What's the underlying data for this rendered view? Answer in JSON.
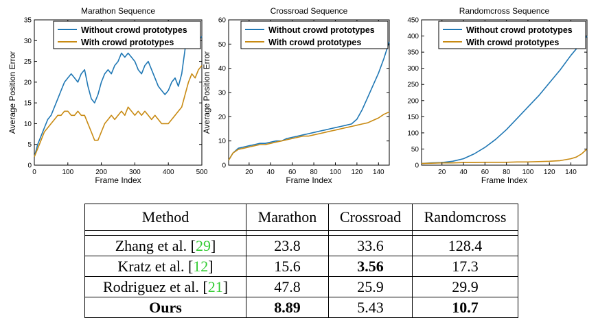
{
  "chart_data": [
    {
      "type": "line",
      "title": "Marathon Sequence",
      "xlabel": "Frame Index",
      "ylabel": "Average Position Error",
      "xlim": [
        0,
        500
      ],
      "ylim": [
        0,
        35
      ],
      "xticks": [
        0,
        100,
        200,
        300,
        400,
        500
      ],
      "yticks": [
        0,
        5,
        10,
        15,
        20,
        25,
        30,
        35
      ],
      "legend": "top-right",
      "grid": false,
      "series": [
        {
          "name": "Without crowd prototypes",
          "color": "#1f77b4",
          "x": [
            0,
            10,
            20,
            30,
            40,
            50,
            60,
            70,
            80,
            90,
            100,
            110,
            120,
            130,
            140,
            150,
            160,
            170,
            180,
            190,
            200,
            210,
            220,
            230,
            240,
            250,
            260,
            270,
            280,
            290,
            300,
            310,
            320,
            330,
            340,
            350,
            360,
            370,
            380,
            390,
            400,
            410,
            420,
            430,
            440,
            450,
            460,
            470,
            480,
            490,
            500
          ],
          "y": [
            2,
            5,
            7,
            9,
            11,
            12,
            14,
            16,
            18,
            20,
            21,
            22,
            21,
            20,
            22,
            23,
            19,
            16,
            15,
            17,
            20,
            22,
            23,
            22,
            24,
            25,
            27,
            26,
            27,
            26,
            25,
            23,
            22,
            24,
            25,
            23,
            21,
            19,
            18,
            17,
            18,
            20,
            21,
            19,
            22,
            28,
            31,
            34,
            29,
            30,
            31
          ]
        },
        {
          "name": "With crowd prototypes",
          "color": "#c88a12",
          "x": [
            0,
            10,
            20,
            30,
            40,
            50,
            60,
            70,
            80,
            90,
            100,
            110,
            120,
            130,
            140,
            150,
            160,
            170,
            180,
            190,
            200,
            210,
            220,
            230,
            240,
            250,
            260,
            270,
            280,
            290,
            300,
            310,
            320,
            330,
            340,
            350,
            360,
            370,
            380,
            390,
            400,
            410,
            420,
            430,
            440,
            450,
            460,
            470,
            480,
            490,
            500
          ],
          "y": [
            2,
            4,
            6,
            8,
            9,
            10,
            11,
            12,
            12,
            13,
            13,
            12,
            12,
            13,
            12,
            12,
            10,
            8,
            6,
            6,
            8,
            10,
            11,
            12,
            11,
            12,
            13,
            12,
            14,
            13,
            12,
            13,
            12,
            13,
            12,
            11,
            12,
            11,
            10,
            10,
            10,
            11,
            12,
            13,
            14,
            17,
            20,
            22,
            21,
            23,
            24
          ]
        }
      ]
    },
    {
      "type": "line",
      "title": "Crossroad Sequence",
      "xlabel": "Frame Index",
      "ylabel": "Average Position Error",
      "xlim": [
        1,
        150
      ],
      "ylim": [
        0,
        60
      ],
      "xticks": [
        20,
        40,
        60,
        80,
        100,
        120,
        140
      ],
      "yticks": [
        0,
        10,
        20,
        30,
        40,
        50,
        60
      ],
      "legend": "top-right",
      "grid": false,
      "series": [
        {
          "name": "Without crowd prototypes",
          "color": "#1f77b4",
          "x": [
            1,
            5,
            10,
            15,
            20,
            25,
            30,
            35,
            40,
            45,
            50,
            55,
            60,
            65,
            70,
            75,
            80,
            85,
            90,
            95,
            100,
            105,
            110,
            115,
            120,
            125,
            130,
            135,
            140,
            145,
            150
          ],
          "y": [
            2,
            5,
            7,
            7.5,
            8,
            8.5,
            9,
            9,
            9.5,
            10,
            10,
            11,
            11.5,
            12,
            12.5,
            13,
            13.5,
            14,
            14.5,
            15,
            15.5,
            16,
            16.5,
            17,
            19,
            23,
            28,
            33,
            38,
            44,
            51
          ]
        },
        {
          "name": "With crowd prototypes",
          "color": "#c88a12",
          "x": [
            1,
            5,
            10,
            15,
            20,
            25,
            30,
            35,
            40,
            45,
            50,
            55,
            60,
            65,
            70,
            75,
            80,
            85,
            90,
            95,
            100,
            105,
            110,
            115,
            120,
            125,
            130,
            135,
            140,
            145,
            150
          ],
          "y": [
            2,
            5,
            6.5,
            7,
            7.5,
            8,
            8.5,
            8.5,
            9,
            9.5,
            10,
            10.5,
            11,
            11.5,
            12,
            12,
            12.5,
            13,
            13.5,
            14,
            14.5,
            15,
            15.5,
            16,
            16.5,
            17,
            17.5,
            18.5,
            19.5,
            21,
            22
          ]
        }
      ]
    },
    {
      "type": "line",
      "title": "Randomcross Sequence",
      "xlabel": "Frame Index",
      "ylabel": "",
      "xlim": [
        1,
        155
      ],
      "ylim": [
        0,
        450
      ],
      "xticks": [
        20,
        40,
        60,
        80,
        100,
        120,
        140
      ],
      "yticks": [
        0,
        50,
        100,
        150,
        200,
        250,
        300,
        350,
        400,
        450
      ],
      "legend": "top-right",
      "grid": false,
      "series": [
        {
          "name": "Without crowd prototypes",
          "color": "#1f77b4",
          "x": [
            1,
            10,
            20,
            30,
            40,
            50,
            60,
            70,
            80,
            90,
            100,
            110,
            120,
            130,
            140,
            150,
            155
          ],
          "y": [
            5,
            7,
            8,
            12,
            20,
            35,
            55,
            80,
            110,
            145,
            180,
            215,
            255,
            295,
            340,
            380,
            400
          ]
        },
        {
          "name": "With crowd prototypes",
          "color": "#c88a12",
          "x": [
            1,
            10,
            20,
            30,
            40,
            50,
            60,
            70,
            80,
            90,
            100,
            110,
            120,
            130,
            140,
            145,
            150,
            155
          ],
          "y": [
            5,
            6,
            7,
            7,
            8,
            8,
            9,
            9,
            9,
            10,
            10,
            11,
            12,
            14,
            20,
            25,
            35,
            50
          ]
        }
      ]
    }
  ],
  "table": {
    "headers": [
      "Method",
      "Marathon",
      "Crossroad",
      "Randomcross"
    ],
    "rows": [
      {
        "method": "Zhang et al.",
        "ref": "29",
        "values": [
          "23.8",
          "33.6",
          "128.4"
        ],
        "bold": [
          false,
          false,
          false,
          false
        ]
      },
      {
        "method": "Kratz et al.",
        "ref": "12",
        "values": [
          "15.6",
          "3.56",
          "17.3"
        ],
        "bold": [
          false,
          false,
          true,
          false
        ]
      },
      {
        "method": "Rodriguez et al.",
        "ref": "21",
        "values": [
          "47.8",
          "25.9",
          "29.9"
        ],
        "bold": [
          false,
          false,
          false,
          false
        ]
      },
      {
        "method": "Ours",
        "ref": "",
        "values": [
          "8.89",
          "5.43",
          "10.7"
        ],
        "bold": [
          true,
          true,
          false,
          true
        ]
      }
    ]
  }
}
